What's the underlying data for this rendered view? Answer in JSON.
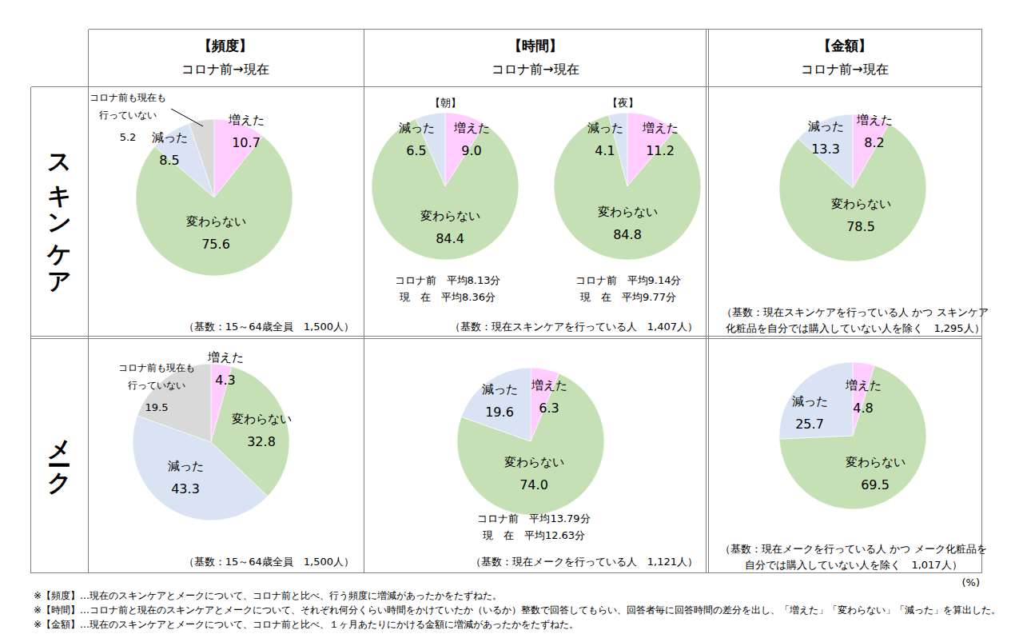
{
  "table": {
    "column_headers": [
      {
        "title": "【頻度】",
        "subtitle": "コロナ前→現在"
      },
      {
        "title": "【時間】",
        "subtitle": "コロナ前→現在"
      },
      {
        "title": "【金額】",
        "subtitle": "コロナ前→現在"
      }
    ],
    "row_headers": [
      "スキンケア",
      "メーク"
    ],
    "bases": [
      [
        [
          "（基数：15～64歳全員　1,500人）"
        ],
        [
          "（基数：現在スキンケアを行っている人　1,407人）"
        ],
        [
          "（基数：現在スキンケアを行っている人 かつ スキンケア",
          "化粧品を自分では購入していない人を除く　1,295人）"
        ]
      ],
      [
        [
          "（基数：15～64歳全員　1,500人）"
        ],
        [
          "（基数：現在メークを行っている人　1,121人）"
        ],
        [
          "（基数：現在メークを行っている人 かつ メーク化粧品を",
          "自分では購入していない人を除く　1,017人）"
        ]
      ]
    ],
    "unit": "(%)",
    "notes": [
      "※【頻度】…現在のスキンケアとメークについて、コロナ前と比べ、行う頻度に増減があったかをたずねた。",
      "※【時間】…コロナ前と現在のスキンケアとメークについて、それぞれ何分くらい時間をかけていたか（いるか）整数で回答してもらい、回答者毎に回答時間の差分を出し、「増えた」「変わらない」「減った」を算出した。",
      "※【金額】…現在のスキンケアとメークについて、コロナ前と比べ、１ヶ月あたりにかける金額に増減があったかをたずねた。"
    ]
  },
  "chart_data": [
    {
      "type": "pie",
      "categories": [
        "増えた",
        "変わらない",
        "減った",
        "コロナ前も現在も\n行っていない"
      ],
      "values": [
        10.7,
        75.6,
        8.5,
        5.2
      ],
      "value_labels": [
        "10.7",
        "75.6",
        "8.5",
        "5.2"
      ],
      "colors": [
        "#ffccff",
        "#c5e0b4",
        "#dae3f3",
        "#d9d9d9"
      ],
      "data_labels": true
    },
    {
      "type": "pie",
      "title": "【朝】",
      "categories": [
        "増えた",
        "変わらない",
        "減った"
      ],
      "values": [
        9.0,
        84.4,
        6.5
      ],
      "value_labels": [
        "9.0",
        "84.4",
        "6.5"
      ],
      "colors": [
        "#ffccff",
        "#c5e0b4",
        "#dae3f3"
      ],
      "data_labels": true,
      "annotations": [
        "コロナ前　平均8.13分",
        "現　在　平均8.36分"
      ]
    },
    {
      "type": "pie",
      "title": "【夜】",
      "categories": [
        "増えた",
        "変わらない",
        "減った"
      ],
      "values": [
        11.2,
        84.8,
        4.1
      ],
      "value_labels": [
        "11.2",
        "84.8",
        "4.1"
      ],
      "colors": [
        "#ffccff",
        "#c5e0b4",
        "#dae3f3"
      ],
      "data_labels": true,
      "annotations": [
        "コロナ前　平均9.14分",
        "現　在　平均9.77分"
      ]
    },
    {
      "type": "pie",
      "categories": [
        "増えた",
        "変わらない",
        "減った"
      ],
      "values": [
        8.2,
        78.5,
        13.3
      ],
      "value_labels": [
        "8.2",
        "78.5",
        "13.3"
      ],
      "colors": [
        "#ffccff",
        "#c5e0b4",
        "#dae3f3"
      ],
      "data_labels": true
    },
    {
      "type": "pie",
      "categories": [
        "増えた",
        "変わらない",
        "減った",
        "コロナ前も現在も\n行っていない"
      ],
      "values": [
        4.3,
        32.8,
        43.3,
        19.5
      ],
      "value_labels": [
        "4.3",
        "32.8",
        "43.3",
        "19.5"
      ],
      "colors": [
        "#ffccff",
        "#c5e0b4",
        "#dae3f3",
        "#d9d9d9"
      ],
      "data_labels": true
    },
    {
      "type": "pie",
      "categories": [
        "増えた",
        "変わらない",
        "減った"
      ],
      "values": [
        6.3,
        74.0,
        19.6
      ],
      "value_labels": [
        "6.3",
        "74.0",
        "19.6"
      ],
      "colors": [
        "#ffccff",
        "#c5e0b4",
        "#dae3f3"
      ],
      "data_labels": true,
      "annotations": [
        "コロナ前　平均13.79分",
        "現　在　平均12.63分"
      ]
    },
    {
      "type": "pie",
      "categories": [
        "増えた",
        "変わらない",
        "減った"
      ],
      "values": [
        4.8,
        69.5,
        25.7
      ],
      "value_labels": [
        "4.8",
        "69.5",
        "25.7"
      ],
      "colors": [
        "#ffccff",
        "#c5e0b4",
        "#dae3f3"
      ],
      "data_labels": true
    }
  ]
}
